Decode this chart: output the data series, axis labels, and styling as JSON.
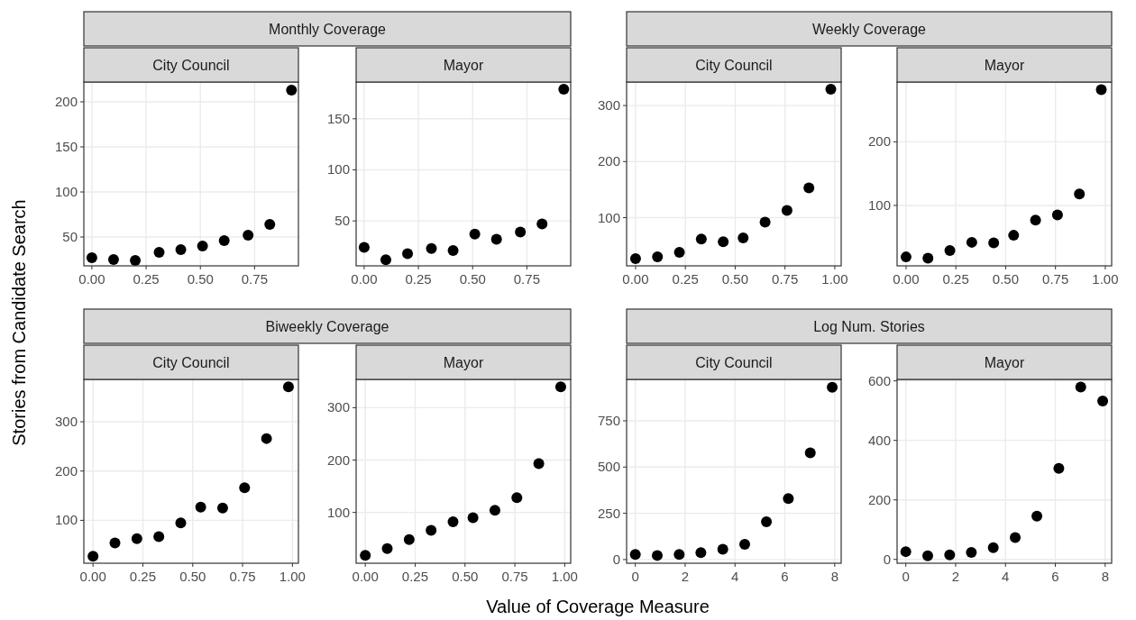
{
  "chart_data": [
    {
      "type": "scatter",
      "subtitle": "Monthly Coverage",
      "title": "City Council",
      "ylabel": "Stories from Candidate Search",
      "color": "#000000",
      "marker": "circle",
      "grid": true,
      "x": [
        0,
        0.1,
        0.2,
        0.31,
        0.41,
        0.51,
        0.61,
        0.72,
        0.82,
        0.92
      ],
      "values": [
        27,
        25,
        24,
        33,
        36,
        40,
        46,
        52,
        64,
        213
      ],
      "xlim": [
        -0.037,
        0.952
      ],
      "xticks": [
        {
          "value": 0,
          "label": "0.00"
        },
        {
          "value": 0.25,
          "label": "0.25"
        },
        {
          "value": 0.5,
          "label": "0.50"
        },
        {
          "value": 0.75,
          "label": "0.75"
        }
      ],
      "ylim": [
        18,
        222
      ],
      "yticks": [
        50,
        100,
        150,
        200
      ]
    },
    {
      "type": "scatter",
      "title": "Mayor",
      "color": "#000000",
      "marker": "circle",
      "grid": true,
      "x": [
        0,
        0.1,
        0.2,
        0.31,
        0.41,
        0.51,
        0.61,
        0.72,
        0.82,
        0.92
      ],
      "values": [
        24,
        12,
        18,
        23,
        21,
        37,
        32,
        39,
        47,
        179
      ],
      "xlim": [
        -0.037,
        0.952
      ],
      "xticks": [
        {
          "value": 0,
          "label": "0.00"
        },
        {
          "value": 0.25,
          "label": "0.25"
        },
        {
          "value": 0.5,
          "label": "0.50"
        },
        {
          "value": 0.75,
          "label": "0.75"
        }
      ],
      "ylim": [
        6,
        186
      ],
      "yticks": [
        50,
        100,
        150
      ]
    },
    {
      "type": "scatter",
      "subtitle": "Weekly Coverage",
      "title": "City Council",
      "color": "#000000",
      "marker": "circle",
      "grid": true,
      "x": [
        0,
        0.11,
        0.22,
        0.33,
        0.44,
        0.54,
        0.65,
        0.76,
        0.87,
        0.98
      ],
      "values": [
        27,
        30,
        38,
        62,
        57,
        64,
        92,
        113,
        153,
        329
      ],
      "xlim": [
        -0.045,
        1.032
      ],
      "xticks": [
        {
          "value": 0,
          "label": "0.00"
        },
        {
          "value": 0.25,
          "label": "0.25"
        },
        {
          "value": 0.5,
          "label": "0.50"
        },
        {
          "value": 0.75,
          "label": "0.75"
        },
        {
          "value": 1,
          "label": "1.00"
        }
      ],
      "ylim": [
        14,
        342
      ],
      "yticks": [
        100,
        200,
        300
      ]
    },
    {
      "type": "scatter",
      "title": "Mayor",
      "color": "#000000",
      "marker": "circle",
      "grid": true,
      "x": [
        0,
        0.11,
        0.22,
        0.33,
        0.44,
        0.54,
        0.65,
        0.76,
        0.87,
        0.98
      ],
      "values": [
        19,
        17,
        29,
        42,
        41,
        53,
        77,
        85,
        118,
        282
      ],
      "xlim": [
        -0.045,
        1.032
      ],
      "xticks": [
        {
          "value": 0,
          "label": "0.00"
        },
        {
          "value": 0.25,
          "label": "0.25"
        },
        {
          "value": 0.5,
          "label": "0.50"
        },
        {
          "value": 0.75,
          "label": "0.75"
        },
        {
          "value": 1,
          "label": "1.00"
        }
      ],
      "ylim": [
        5,
        294
      ],
      "yticks": [
        100,
        200
      ]
    },
    {
      "type": "scatter",
      "subtitle": "Biweekly Coverage",
      "title": "City Council",
      "color": "#000000",
      "marker": "circle",
      "grid": true,
      "x": [
        0,
        0.11,
        0.22,
        0.33,
        0.44,
        0.54,
        0.65,
        0.76,
        0.87,
        0.98
      ],
      "values": [
        27,
        54,
        63,
        67,
        95,
        127,
        125,
        166,
        266,
        371
      ],
      "xlim": [
        -0.046,
        1.03
      ],
      "xticks": [
        {
          "value": 0,
          "label": "0.00"
        },
        {
          "value": 0.25,
          "label": "0.25"
        },
        {
          "value": 0.5,
          "label": "0.50"
        },
        {
          "value": 0.75,
          "label": "0.75"
        },
        {
          "value": 1,
          "label": "1.00"
        }
      ],
      "ylim": [
        13,
        386
      ],
      "yticks": [
        100,
        200,
        300
      ]
    },
    {
      "type": "scatter",
      "title": "Mayor",
      "xlabel": "Value of Coverage Measure",
      "color": "#000000",
      "marker": "circle",
      "grid": true,
      "x": [
        0,
        0.11,
        0.22,
        0.33,
        0.44,
        0.54,
        0.65,
        0.76,
        0.87,
        0.98
      ],
      "values": [
        18,
        31,
        48,
        66,
        82,
        90,
        104,
        128,
        193,
        340
      ],
      "xlim": [
        -0.046,
        1.03
      ],
      "xticks": [
        {
          "value": 0,
          "label": "0.00"
        },
        {
          "value": 0.25,
          "label": "0.25"
        },
        {
          "value": 0.5,
          "label": "0.50"
        },
        {
          "value": 0.75,
          "label": "0.75"
        },
        {
          "value": 1,
          "label": "1.00"
        }
      ],
      "ylim": [
        3,
        354
      ],
      "yticks": [
        100,
        200,
        300
      ]
    },
    {
      "type": "scatter",
      "subtitle": "Log Num. Stories",
      "title": "City Council",
      "color": "#000000",
      "marker": "circle",
      "grid": true,
      "x": [
        0,
        0.88,
        1.76,
        2.63,
        3.51,
        4.39,
        5.26,
        6.14,
        7.02,
        7.9
      ],
      "values": [
        27,
        22,
        27,
        37,
        55,
        82,
        204,
        330,
        577,
        931
      ],
      "xlim": [
        -0.35,
        8.26
      ],
      "xticks": [
        0,
        2,
        4,
        6,
        8
      ],
      "ylim": [
        -20,
        974
      ],
      "yticks": [
        0,
        250,
        500,
        750
      ]
    },
    {
      "type": "scatter",
      "title": "Mayor",
      "color": "#000000",
      "marker": "circle",
      "grid": true,
      "x": [
        0,
        0.88,
        1.76,
        2.63,
        3.51,
        4.39,
        5.26,
        6.14,
        7.02,
        7.9
      ],
      "values": [
        26,
        12,
        15,
        23,
        39,
        73,
        145,
        306,
        579,
        532
      ],
      "xlim": [
        -0.35,
        8.26
      ],
      "xticks": [
        0,
        2,
        4,
        6,
        8
      ],
      "ylim": [
        -13,
        605
      ],
      "yticks": [
        0,
        200,
        400,
        600
      ]
    }
  ]
}
